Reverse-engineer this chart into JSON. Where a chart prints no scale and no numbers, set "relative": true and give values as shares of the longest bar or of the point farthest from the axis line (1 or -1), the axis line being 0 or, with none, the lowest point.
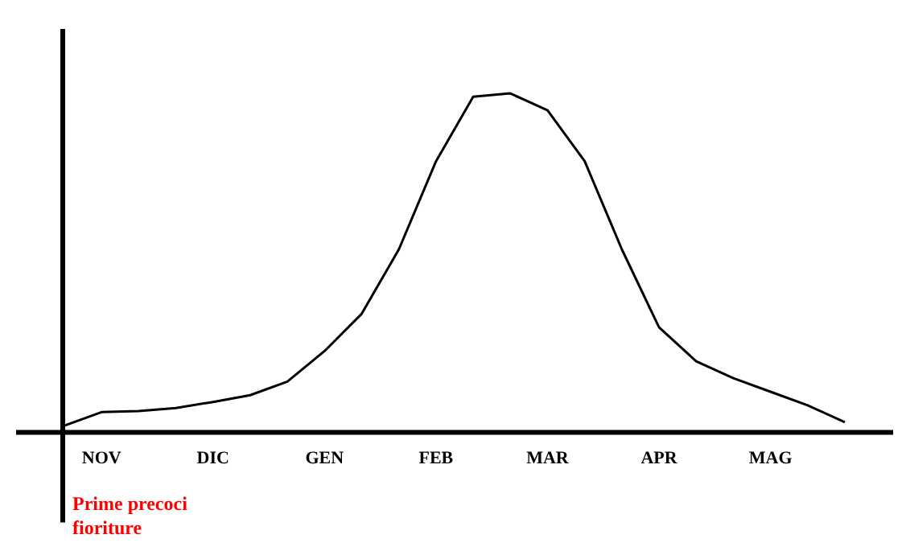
{
  "chart_data": {
    "type": "line",
    "relative": true,
    "categories": [
      null,
      "NOV",
      null,
      null,
      "DIC",
      null,
      null,
      "GEN",
      null,
      null,
      "FEB",
      null,
      null,
      "MAR",
      null,
      null,
      "APR",
      null,
      null,
      "MAG",
      null,
      null
    ],
    "series": [
      {
        "color": "#000000",
        "values": [
          0.02,
          0.06,
          0.063,
          0.072,
          0.09,
          0.11,
          0.15,
          0.24,
          0.35,
          0.54,
          0.8,
          0.99,
          1,
          0.95,
          0.8,
          0.54,
          0.31,
          0.21,
          0.16,
          0.12,
          0.08,
          0.03
        ]
      }
    ],
    "annotations": [
      "Prime precoci fioriture"
    ],
    "legend": false,
    "marker": "none",
    "line_style": "solid"
  }
}
